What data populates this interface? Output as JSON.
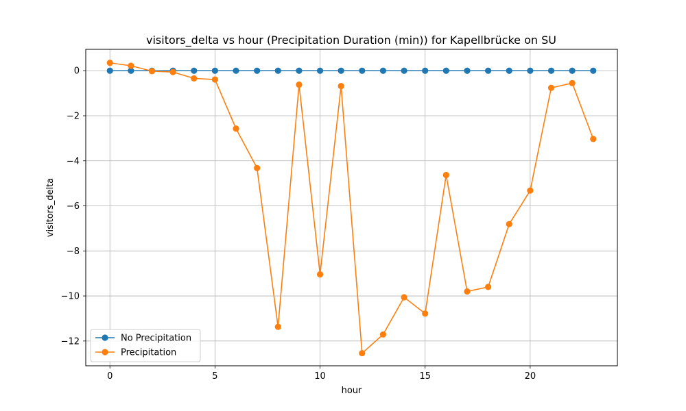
{
  "chart_data": {
    "type": "line",
    "title": "visitors_delta vs hour (Precipitation Duration (min)) for Kapellbrücke on SU",
    "xlabel": "hour",
    "ylabel": "visitors_delta",
    "xlim": [
      -1.15,
      24.15
    ],
    "ylim": [
      -13.1,
      0.95
    ],
    "xticks": [
      0,
      5,
      10,
      15,
      20
    ],
    "yticks": [
      0,
      -2,
      -4,
      -6,
      -8,
      -10,
      -12
    ],
    "grid": true,
    "legend": "lower-left",
    "x": [
      0,
      1,
      2,
      3,
      4,
      5,
      6,
      7,
      8,
      9,
      10,
      11,
      12,
      13,
      14,
      15,
      16,
      17,
      18,
      19,
      20,
      21,
      22,
      23
    ],
    "series": [
      {
        "name": "No Precipitation",
        "color": "#1f77b4",
        "values": [
          0,
          0,
          0,
          0,
          0,
          0,
          0,
          0,
          0,
          0,
          0,
          0,
          0,
          0,
          0,
          0,
          0,
          0,
          0,
          0,
          0,
          0,
          0,
          0
        ]
      },
      {
        "name": "Precipitation",
        "color": "#ff7f0e",
        "values": [
          0.35,
          0.22,
          -0.02,
          -0.06,
          -0.34,
          -0.39,
          -2.57,
          -4.32,
          -11.37,
          -0.62,
          -9.04,
          -0.68,
          -12.54,
          -11.71,
          -10.06,
          -10.78,
          -4.63,
          -9.8,
          -9.6,
          -6.81,
          -5.32,
          -0.76,
          -0.55,
          -3.03
        ]
      }
    ]
  }
}
